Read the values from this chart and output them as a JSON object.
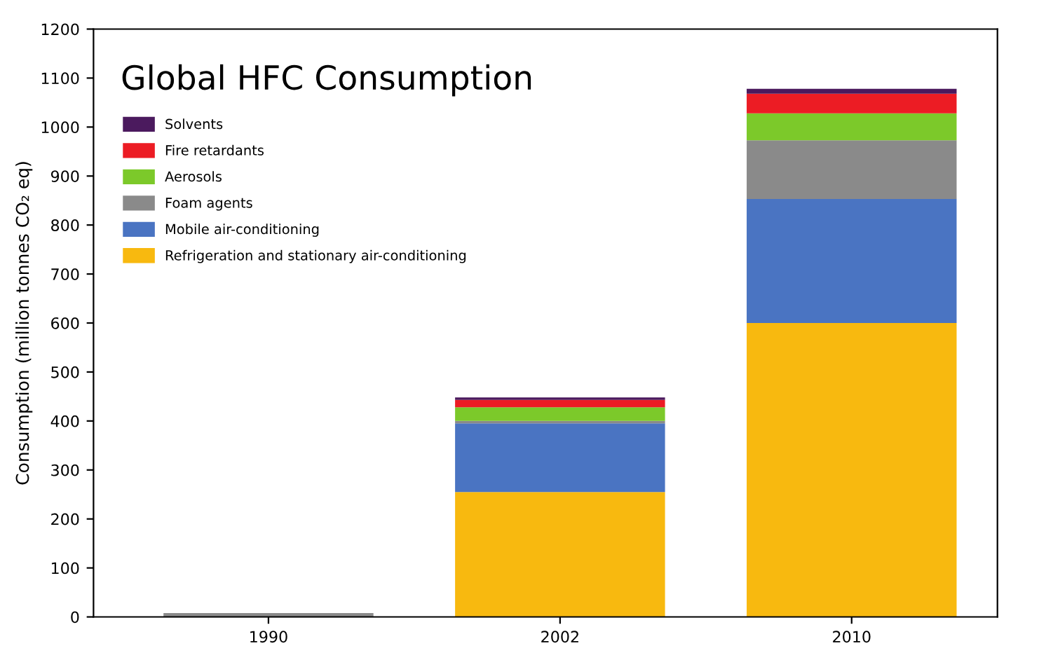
{
  "chart_data": {
    "type": "bar",
    "title": "Global HFC Consumption",
    "ylabel": "Consumption (million tonnes CO₂ eq)",
    "categories": [
      "1990",
      "2002",
      "2010"
    ],
    "stacked": true,
    "series": [
      {
        "name": "Refrigeration and stationary air-conditioning",
        "color": "#f8b90f",
        "values": [
          0,
          255,
          600
        ]
      },
      {
        "name": "Mobile air-conditioning",
        "color": "#4a74c2",
        "values": [
          0,
          140,
          253
        ]
      },
      {
        "name": "Foam agents",
        "color": "#8a8a8a",
        "values": [
          8,
          5,
          120
        ]
      },
      {
        "name": "Aerosols",
        "color": "#7cc92a",
        "values": [
          0,
          28,
          55
        ]
      },
      {
        "name": "Fire retardants",
        "color": "#ec1c24",
        "values": [
          0,
          15,
          40
        ]
      },
      {
        "name": "Solvents",
        "color": "#4b1a5e",
        "values": [
          0,
          5,
          10
        ]
      }
    ],
    "ylim": [
      0,
      1200
    ],
    "yticks": [
      0,
      100,
      200,
      300,
      400,
      500,
      600,
      700,
      800,
      900,
      1000,
      1100,
      1200
    ],
    "legend": "top left"
  }
}
